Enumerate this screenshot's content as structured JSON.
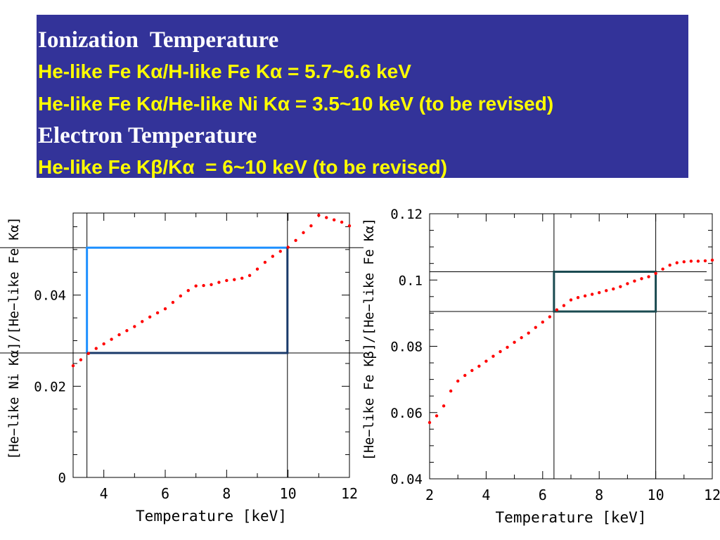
{
  "header": {
    "title1": "Ionization  Temperature",
    "line1": "He-like Fe Kα/H-like Fe Kα = 5.7~6.6 keV",
    "line2": "He-like Fe Kα/He-like Ni Kα = 3.5~10 keV (to be revised)",
    "title2": "Electron Temperature",
    "line3": "He-like Fe Kβ/Kα  = 6~10 keV (to be revised)",
    "bg_color": "#333399",
    "title_color": "#ffffff",
    "line_color": "#ffff00"
  },
  "chart_data": [
    {
      "type": "scatter",
      "xlabel": "Temperature [keV]",
      "ylabel": "[He−like Ni Kα]/[He−like Fe Kα]",
      "xlim": [
        3,
        12
      ],
      "ylim": [
        0,
        0.058
      ],
      "xticks": [
        4,
        6,
        8,
        10,
        12
      ],
      "xtick_labels": [
        "4",
        "6",
        "8",
        "10",
        "12"
      ],
      "yticks": [
        0,
        0.02,
        0.04
      ],
      "ytick_labels": [
        "0",
        "0.02",
        "0.04"
      ],
      "point_color": "#ff0000",
      "x": [
        3.0,
        3.25,
        3.5,
        3.75,
        4.0,
        4.25,
        4.5,
        4.75,
        5.0,
        5.25,
        5.5,
        5.75,
        6.0,
        6.25,
        6.5,
        6.75,
        7.0,
        7.25,
        7.5,
        7.75,
        8.0,
        8.25,
        8.5,
        8.75,
        9.0,
        9.25,
        9.5,
        9.75,
        10.0,
        10.25,
        10.5,
        10.75,
        11.0,
        11.25,
        11.5,
        11.75,
        12.0
      ],
      "y": [
        0.0245,
        0.0258,
        0.0272,
        0.0283,
        0.0293,
        0.0303,
        0.0313,
        0.0322,
        0.0331,
        0.0342,
        0.0352,
        0.0361,
        0.037,
        0.0384,
        0.0398,
        0.041,
        0.042,
        0.0421,
        0.0423,
        0.0428,
        0.0432,
        0.0434,
        0.0437,
        0.0443,
        0.0457,
        0.0472,
        0.0485,
        0.0496,
        0.0505,
        0.052,
        0.0537,
        0.0552,
        0.0575,
        0.057,
        0.0565,
        0.056,
        0.0552
      ],
      "vlines": [
        3.45,
        9.98
      ],
      "hlines": [
        0.0273,
        0.0504
      ],
      "hline_colors": [
        "#000000",
        "#000000"
      ],
      "box": {
        "x": [
          3.45,
          9.98
        ],
        "y": [
          0.0273,
          0.0504
        ],
        "color": "#1e90ff",
        "bottom_right_color": "#1a3a6a"
      }
    },
    {
      "type": "scatter",
      "xlabel": "Temperature [keV]",
      "ylabel": "[He−like Fe Kβ]/[He−like Fe Kα]",
      "xlim": [
        2,
        12
      ],
      "ylim": [
        0.04,
        0.12
      ],
      "xticks": [
        2,
        4,
        6,
        8,
        10,
        12
      ],
      "xtick_labels": [
        "2",
        "4",
        "6",
        "8",
        "10",
        "12"
      ],
      "yticks": [
        0.04,
        0.06,
        0.08,
        0.1,
        0.12
      ],
      "ytick_labels": [
        "0.04",
        "0.06",
        "0.08",
        "0.1",
        "0.12"
      ],
      "point_color": "#ff0000",
      "x": [
        2.0,
        2.25,
        2.5,
        2.75,
        3.0,
        3.25,
        3.5,
        3.75,
        4.0,
        4.25,
        4.5,
        4.75,
        5.0,
        5.25,
        5.5,
        5.75,
        6.0,
        6.25,
        6.5,
        6.75,
        7.0,
        7.25,
        7.5,
        7.75,
        8.0,
        8.25,
        8.5,
        8.75,
        9.0,
        9.25,
        9.5,
        9.75,
        10.0,
        10.25,
        10.5,
        10.75,
        11.0,
        11.25,
        11.5,
        11.75,
        12.0
      ],
      "y": [
        0.057,
        0.059,
        0.062,
        0.0665,
        0.0695,
        0.0712,
        0.0727,
        0.074,
        0.0755,
        0.077,
        0.0784,
        0.0797,
        0.0812,
        0.0826,
        0.084,
        0.0857,
        0.0873,
        0.0889,
        0.091,
        0.0923,
        0.094,
        0.0947,
        0.0952,
        0.0957,
        0.0962,
        0.0968,
        0.0973,
        0.098,
        0.0989,
        0.0997,
        0.1004,
        0.101,
        0.102,
        0.1033,
        0.1045,
        0.1052,
        0.1055,
        0.1057,
        0.1057,
        0.1058,
        0.106
      ],
      "vlines": [
        6.4,
        10.0
      ],
      "hlines": [
        0.0905,
        0.1025
      ],
      "box": {
        "x": [
          6.4,
          10.0
        ],
        "y": [
          0.0905,
          0.1025
        ],
        "color": "#1a4a50"
      }
    }
  ]
}
